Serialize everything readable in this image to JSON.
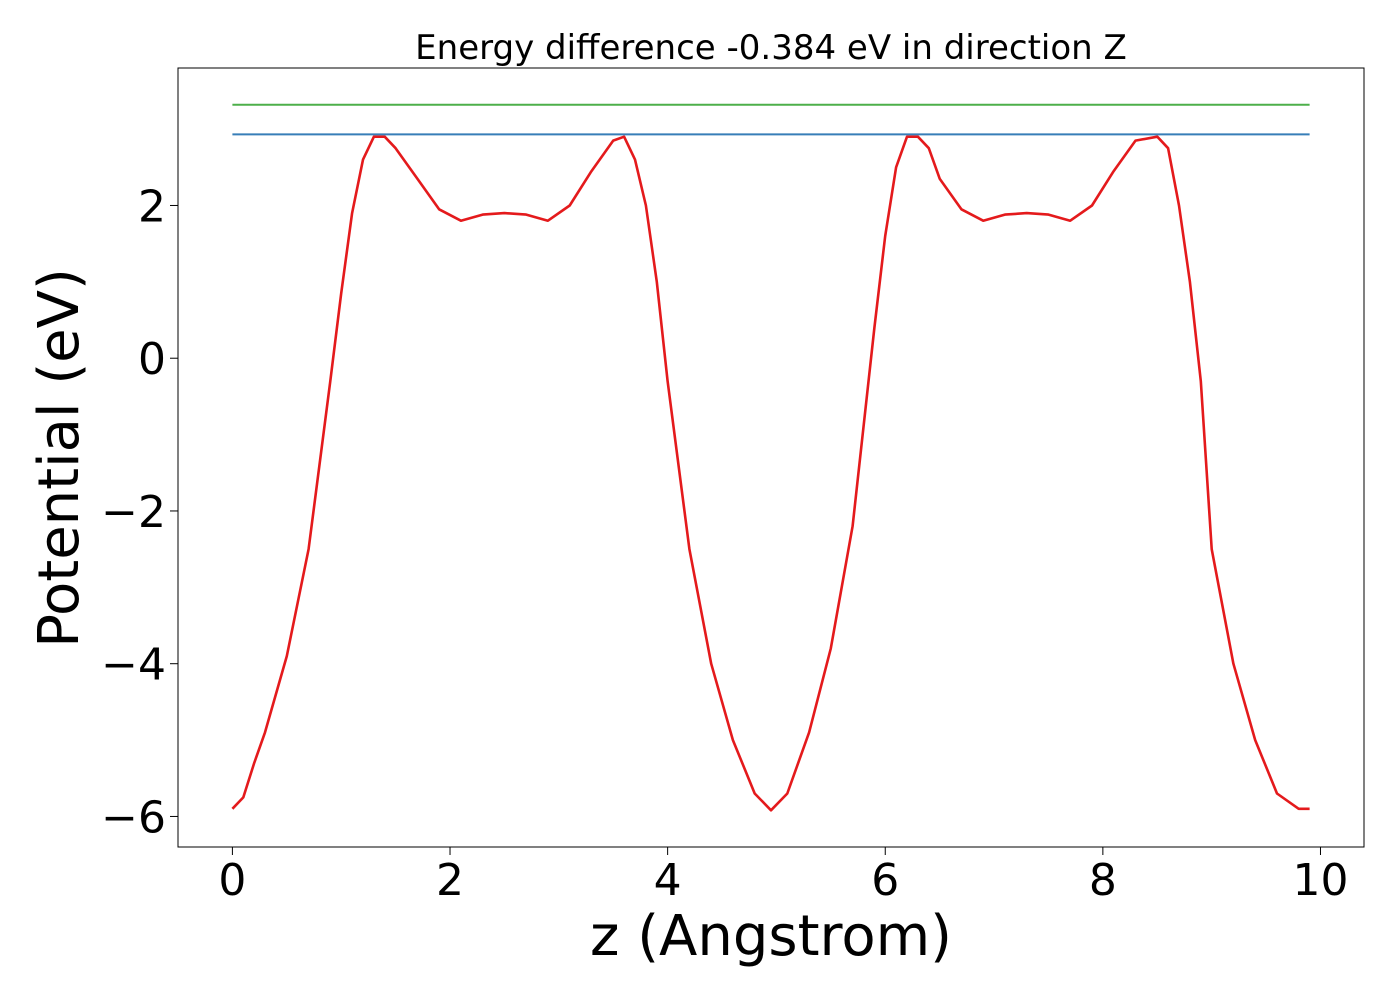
{
  "chart_data": {
    "type": "line",
    "title": "Energy difference -0.384 eV in direction Z",
    "xlabel": "z (Angstrom)",
    "ylabel": "Potential (eV)",
    "xlim": [
      -0.5,
      10.4
    ],
    "ylim": [
      -6.4,
      3.8
    ],
    "xticks": [
      0,
      2,
      4,
      6,
      8,
      10
    ],
    "yticks": [
      2,
      0,
      -2,
      -4,
      -6
    ],
    "grid": false,
    "series": [
      {
        "color": "#e41a1c",
        "x": [
          0.0,
          0.1,
          0.2,
          0.3,
          0.5,
          0.7,
          0.9,
          1.0,
          1.1,
          1.2,
          1.3,
          1.4,
          1.5,
          1.7,
          1.9,
          2.1,
          2.3,
          2.5,
          2.7,
          2.9,
          3.1,
          3.3,
          3.5,
          3.6,
          3.7,
          3.8,
          3.9,
          4.0,
          4.2,
          4.4,
          4.6,
          4.8,
          4.95,
          5.1,
          5.3,
          5.5,
          5.7,
          5.9,
          6.0,
          6.1,
          6.2,
          6.3,
          6.4,
          6.5,
          6.7,
          6.9,
          7.1,
          7.3,
          7.5,
          7.7,
          7.9,
          8.1,
          8.3,
          8.5,
          8.6,
          8.7,
          8.8,
          8.9,
          9.0,
          9.2,
          9.4,
          9.6,
          9.8,
          9.9
        ],
        "y": [
          -5.9,
          -5.75,
          -5.3,
          -4.9,
          -3.9,
          -2.5,
          -0.3,
          0.85,
          1.9,
          2.6,
          2.9,
          2.9,
          2.75,
          2.35,
          1.95,
          1.8,
          1.88,
          1.9,
          1.88,
          1.8,
          2.0,
          2.45,
          2.85,
          2.9,
          2.6,
          2.0,
          1.0,
          -0.3,
          -2.5,
          -4.0,
          -5.0,
          -5.7,
          -5.92,
          -5.7,
          -4.9,
          -3.8,
          -2.2,
          0.4,
          1.6,
          2.5,
          2.9,
          2.9,
          2.75,
          2.35,
          1.95,
          1.8,
          1.88,
          1.9,
          1.88,
          1.8,
          2.0,
          2.45,
          2.85,
          2.9,
          2.75,
          2.0,
          1.0,
          -0.3,
          -2.5,
          -4.0,
          -5.0,
          -5.7,
          -5.9,
          -5.9
        ]
      },
      {
        "color": "#377eb8",
        "x": [
          0.0,
          9.9
        ],
        "y": [
          2.93,
          2.93
        ]
      },
      {
        "color": "#4daf4a",
        "x": [
          0.0,
          9.9
        ],
        "y": [
          3.32,
          3.32
        ]
      }
    ]
  }
}
